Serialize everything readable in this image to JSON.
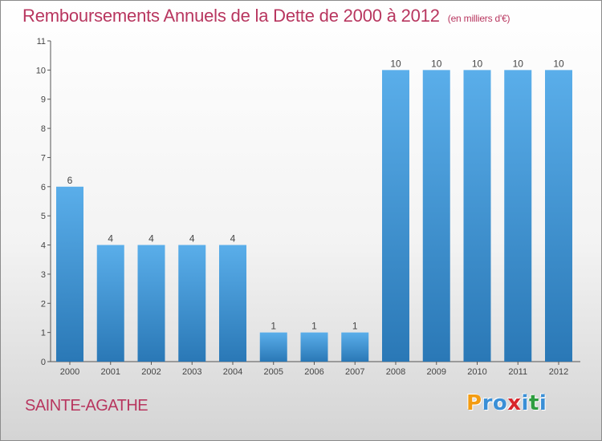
{
  "chart_data": {
    "type": "bar",
    "title": "Remboursements Annuels de la Dette de 2000 à 2012",
    "unit": "(en milliers d'€)",
    "categories": [
      "2000",
      "2001",
      "2002",
      "2003",
      "2004",
      "2005",
      "2006",
      "2007",
      "2008",
      "2009",
      "2010",
      "2011",
      "2012"
    ],
    "values": [
      6,
      4,
      4,
      4,
      4,
      1,
      1,
      1,
      10,
      10,
      10,
      10,
      10
    ],
    "yticks": [
      0,
      1,
      2,
      3,
      4,
      5,
      6,
      7,
      8,
      9,
      10,
      11
    ],
    "ylim": [
      0,
      11
    ],
    "grid": false,
    "colors": {
      "bar_top": "#5aaeea",
      "bar_bottom": "#2a78b6",
      "text": "#b8365f"
    }
  },
  "commune": "SAINTE-AGATHE",
  "brand": {
    "letters": [
      "P",
      "r",
      "o",
      "x",
      "i",
      "t",
      "i"
    ],
    "colors": [
      "#f39c12",
      "#3a8fd6",
      "#3a8fd6",
      "#d8262c",
      "#3a8fd6",
      "#2e9d3f",
      "#3a8fd6"
    ]
  }
}
